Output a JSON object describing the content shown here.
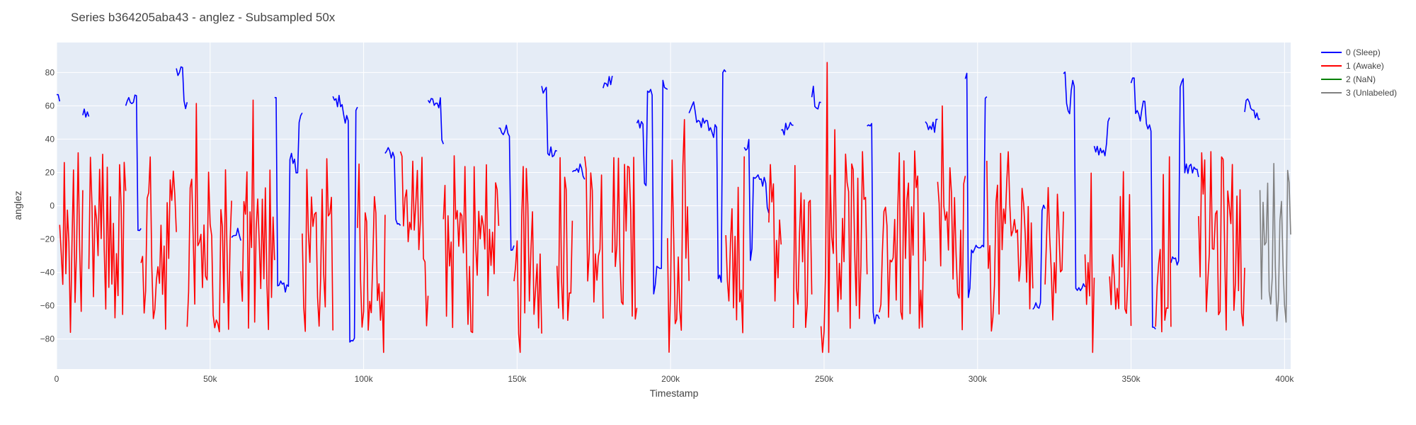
{
  "colors": {
    "plot_bg": "#e5ecf6",
    "grid": "#ffffff",
    "text": "#444444"
  },
  "chart_data": {
    "type": "line",
    "title": "Series b364205aba43 - anglez - Subsampled 50x",
    "xlabel": "Timestamp",
    "ylabel": "anglez",
    "xlim": [
      0,
      402000
    ],
    "ylim": [
      -98,
      98
    ],
    "x_ticks": [
      0,
      50000,
      100000,
      150000,
      200000,
      250000,
      300000,
      350000,
      400000
    ],
    "x_tick_labels": [
      "0",
      "50k",
      "100k",
      "150k",
      "200k",
      "250k",
      "300k",
      "350k",
      "400k"
    ],
    "y_ticks": [
      -80,
      -60,
      -40,
      -20,
      0,
      20,
      40,
      60,
      80
    ],
    "y_tick_labels": [
      "−80",
      "−60",
      "−40",
      "−20",
      "0",
      "20",
      "40",
      "60",
      "80"
    ],
    "grid": true,
    "legend_position": "top-right",
    "series": [
      {
        "name": "0 (Sleep)",
        "color": "#0000ff",
        "segments": [
          [
            0,
            1000
          ],
          [
            8500,
            10500
          ],
          [
            22500,
            27500
          ],
          [
            39000,
            42500
          ],
          [
            57000,
            60000
          ],
          [
            71000,
            80000
          ],
          [
            90000,
            98000
          ],
          [
            107000,
            112000
          ],
          [
            121000,
            126000
          ],
          [
            144000,
            149000
          ],
          [
            158000,
            163000
          ],
          [
            168000,
            172000
          ],
          [
            178000,
            181000
          ],
          [
            189000,
            199000
          ],
          [
            206000,
            218000
          ],
          [
            224000,
            232000
          ],
          [
            236000,
            240000
          ],
          [
            246000,
            249000
          ],
          [
            264000,
            268000
          ],
          [
            283000,
            287000
          ],
          [
            296000,
            303000
          ],
          [
            318000,
            322000
          ],
          [
            328000,
            335000
          ],
          [
            338000,
            343000
          ],
          [
            350000,
            358000
          ],
          [
            363000,
            372000
          ],
          [
            387000,
            392000
          ]
        ]
      },
      {
        "name": "1 (Awake)",
        "color": "#ff0000",
        "segments": [
          [
            1000,
            8500
          ],
          [
            10500,
            22500
          ],
          [
            27500,
            39000
          ],
          [
            42500,
            57000
          ],
          [
            60000,
            71000
          ],
          [
            80000,
            90000
          ],
          [
            98000,
            107000
          ],
          [
            112000,
            121000
          ],
          [
            126000,
            144000
          ],
          [
            149000,
            158000
          ],
          [
            163000,
            168000
          ],
          [
            172000,
            178000
          ],
          [
            181000,
            189000
          ],
          [
            199000,
            206000
          ],
          [
            218000,
            224000
          ],
          [
            232000,
            236000
          ],
          [
            240000,
            246000
          ],
          [
            249000,
            264000
          ],
          [
            268000,
            283000
          ],
          [
            287000,
            296000
          ],
          [
            303000,
            318000
          ],
          [
            322000,
            328000
          ],
          [
            335000,
            338000
          ],
          [
            343000,
            350000
          ],
          [
            358000,
            363000
          ],
          [
            372000,
            387000
          ]
        ]
      },
      {
        "name": "2 (NaN)",
        "color": "#008000",
        "segments": []
      },
      {
        "name": "3 (Unlabeled)",
        "color": "#808080",
        "segments": [
          [
            392000,
            402000
          ]
        ]
      }
    ]
  }
}
